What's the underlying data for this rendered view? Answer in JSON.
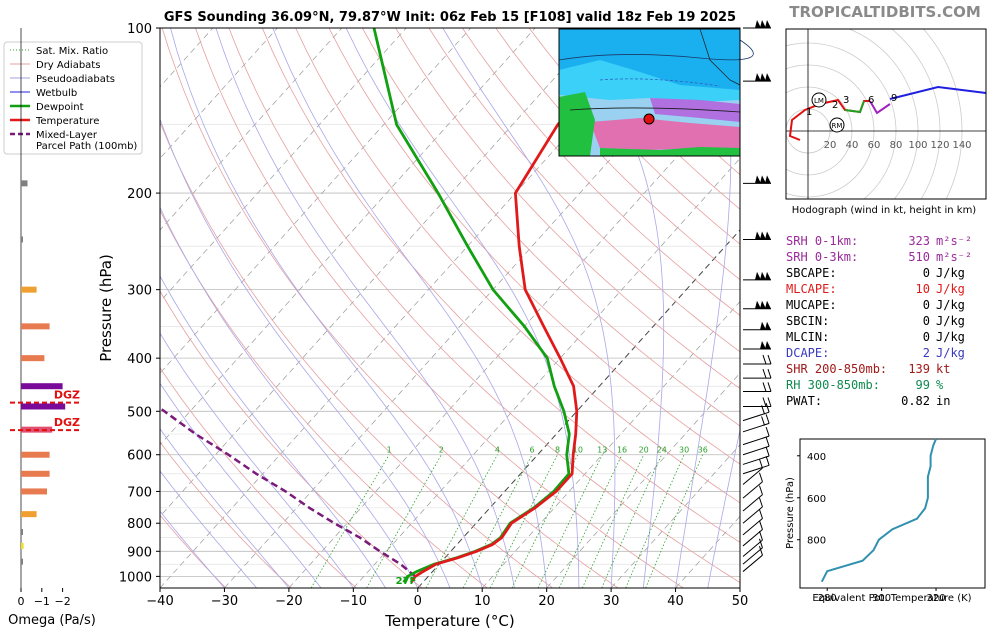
{
  "title": "GFS Sounding 36.09°N, 79.87°W Init: 06z Feb 15 [F108] valid 18z Feb 19 2025",
  "brand": "TROPICALTIDBITS.COM",
  "legend": [
    {
      "label": "Sat. Mix. Ratio",
      "color": "#2ca02c",
      "style": "dotted"
    },
    {
      "label": "Dry Adiabats",
      "color": "#e8a0a0",
      "style": "solid"
    },
    {
      "label": "Pseudoadiabats",
      "color": "#a0a0e0",
      "style": "solid"
    },
    {
      "label": "Wetbulb",
      "color": "#2020e0",
      "style": "solid"
    },
    {
      "label": "Dewpoint",
      "color": "#11a011",
      "style": "thick"
    },
    {
      "label": "Temperature",
      "color": "#e01a1a",
      "style": "thick"
    },
    {
      "label": "Mixed-Layer",
      "color": "#7a1a7a",
      "style": "dashed"
    },
    {
      "label": "Parcel Path (100mb)",
      "color": "#7a1a7a",
      "style": "none"
    }
  ],
  "omega": {
    "xlabel": "Omega (Pa/s)",
    "ticks": [
      "0",
      "−1",
      "−2"
    ],
    "dgz_label": "DGZ",
    "bars": [
      {
        "p": 192,
        "v": 0.25,
        "color": "#808080"
      },
      {
        "p": 243,
        "v": 0.05,
        "color": "#808080"
      },
      {
        "p": 300,
        "v": 0.6,
        "color": "#f0a030"
      },
      {
        "p": 350,
        "v": 1.1,
        "color": "#e87a50"
      },
      {
        "p": 400,
        "v": 0.9,
        "color": "#e87a50"
      },
      {
        "p": 450,
        "v": 1.6,
        "color": "#7a0a9a"
      },
      {
        "p": 490,
        "v": 1.7,
        "color": "#7a0a9a"
      },
      {
        "p": 540,
        "v": 1.2,
        "color": "#e05070"
      },
      {
        "p": 600,
        "v": 1.1,
        "color": "#e87a50"
      },
      {
        "p": 650,
        "v": 1.1,
        "color": "#e87a50"
      },
      {
        "p": 700,
        "v": 1.0,
        "color": "#e87a50"
      },
      {
        "p": 770,
        "v": 0.6,
        "color": "#f0a030"
      },
      {
        "p": 830,
        "v": 0.05,
        "color": "#808080"
      },
      {
        "p": 880,
        "v": 0.1,
        "color": "#f0e020"
      },
      {
        "p": 940,
        "v": 0.05,
        "color": "#808080"
      }
    ],
    "dgz_p": [
      482,
      541
    ]
  },
  "skewt": {
    "xlabel": "Temperature (°C)",
    "ylabel": "Pressure (hPa)",
    "xticks": [
      -40,
      -30,
      -20,
      -10,
      0,
      10,
      20,
      30,
      40,
      50
    ],
    "yticks": [
      100,
      200,
      300,
      400,
      500,
      600,
      700,
      800,
      900,
      1000
    ],
    "mixing_labels": [
      "1",
      "2",
      "4",
      "6",
      "8",
      "10",
      "13",
      "16",
      "20",
      "24",
      "30",
      "36"
    ],
    "surface_label": "27F",
    "temperature": [
      [
        1025,
        -1.8
      ],
      [
        1000,
        -2
      ],
      [
        980,
        -1.5
      ],
      [
        950,
        -0.5
      ],
      [
        925,
        2
      ],
      [
        900,
        4
      ],
      [
        875,
        5.5
      ],
      [
        850,
        6
      ],
      [
        800,
        5.5
      ],
      [
        750,
        7
      ],
      [
        700,
        8
      ],
      [
        650,
        8
      ],
      [
        600,
        5.5
      ],
      [
        550,
        3
      ],
      [
        500,
        0
      ],
      [
        450,
        -4
      ],
      [
        400,
        -10
      ],
      [
        350,
        -17
      ],
      [
        300,
        -25
      ],
      [
        250,
        -32
      ],
      [
        200,
        -40
      ],
      [
        150,
        -43
      ],
      [
        100,
        -43
      ]
    ],
    "dewpoint": [
      [
        1025,
        -3
      ],
      [
        1000,
        -3.2
      ],
      [
        980,
        -2.5
      ],
      [
        950,
        -0.8
      ],
      [
        925,
        1.8
      ],
      [
        900,
        3.8
      ],
      [
        875,
        5.3
      ],
      [
        850,
        5.8
      ],
      [
        800,
        5.3
      ],
      [
        750,
        6.8
      ],
      [
        700,
        7.6
      ],
      [
        650,
        7.5
      ],
      [
        600,
        4.5
      ],
      [
        550,
        2
      ],
      [
        500,
        -2
      ],
      [
        450,
        -7
      ],
      [
        400,
        -12
      ],
      [
        350,
        -20
      ],
      [
        300,
        -30
      ],
      [
        250,
        -40
      ],
      [
        200,
        -52
      ],
      [
        150,
        -68
      ],
      [
        100,
        -85
      ]
    ],
    "parcel": [
      [
        1000,
        -2
      ],
      [
        950,
        -6
      ],
      [
        900,
        -11
      ],
      [
        850,
        -16
      ],
      [
        800,
        -22
      ],
      [
        750,
        -28
      ],
      [
        700,
        -34
      ],
      [
        650,
        -41
      ],
      [
        600,
        -48
      ],
      [
        550,
        -56
      ],
      [
        500,
        -64
      ],
      [
        450,
        -73
      ],
      [
        400,
        -83
      ],
      [
        350,
        -94
      ],
      [
        300,
        -107
      ],
      [
        270,
        -116
      ]
    ]
  },
  "hodograph": {
    "title": "Hodograph (wind in kt, height in km)",
    "rings": [
      "20",
      "40",
      "60",
      "80",
      "100",
      "120",
      "140"
    ],
    "height_labels": [
      "1",
      "2",
      "3",
      "6",
      "9"
    ],
    "markers": [
      "LM",
      "RM"
    ]
  },
  "indices": [
    {
      "label": "SRH 0-1km:",
      "value": "323",
      "unit": "m²s⁻²",
      "color": "#9a2a9a"
    },
    {
      "label": "SRH 0-3km:",
      "value": "510",
      "unit": "m²s⁻²",
      "color": "#9a2a9a"
    },
    {
      "label": "SBCAPE:",
      "value": "0",
      "unit": "J/kg",
      "color": "#000000"
    },
    {
      "label": "MLCAPE:",
      "value": "10",
      "unit": "J/kg",
      "color": "#e01a1a"
    },
    {
      "label": "MUCAPE:",
      "value": "0",
      "unit": "J/kg",
      "color": "#000000"
    },
    {
      "label": "SBCIN:",
      "value": "0",
      "unit": "J/kg",
      "color": "#000000"
    },
    {
      "label": "MLCIN:",
      "value": "0",
      "unit": "J/kg",
      "color": "#000000"
    },
    {
      "label": "DCAPE:",
      "value": "2",
      "unit": "J/kg",
      "color": "#3a3ac0"
    },
    {
      "label": "SHR 200-850mb:",
      "value": "139",
      "unit": "kt",
      "color": "#a01a1a"
    },
    {
      "label": "RH 300-850mb:",
      "value": "99",
      "unit": "%",
      "color": "#108a50"
    },
    {
      "label": "PWAT:",
      "value": "0.82",
      "unit": "in",
      "color": "#000000"
    }
  ],
  "theta": {
    "ylabel": "Pressure (hPa)",
    "xlabel": "Equivalent Pot. Temperature (K)",
    "xticks": [
      "280",
      "300",
      "320"
    ],
    "yticks": [
      "400",
      "600",
      "800"
    ]
  },
  "chart_data": {
    "type": "line",
    "title": "GFS Sounding 36.09°N, 79.87°W Init: 06z Feb 15 [F108] valid 18z Feb 19 2025",
    "xlabel": "Temperature (°C)",
    "ylabel": "Pressure (hPa)",
    "xlim": [
      -40,
      50
    ],
    "ylim": [
      1050,
      100
    ],
    "series": [
      {
        "name": "Temperature",
        "color": "#e01a1a"
      },
      {
        "name": "Dewpoint",
        "color": "#11a011"
      },
      {
        "name": "Mixed-Layer Parcel Path (100mb)",
        "color": "#7a1a7a"
      }
    ],
    "theta_e_profile": {
      "pressure": [
        1000,
        950,
        900,
        850,
        800,
        750,
        700,
        650,
        600,
        550,
        500,
        450,
        400,
        350,
        320
      ],
      "theta_e": [
        278,
        280,
        293,
        297,
        299,
        304,
        313,
        316,
        317,
        317,
        317,
        318,
        318,
        319,
        320
      ]
    }
  }
}
